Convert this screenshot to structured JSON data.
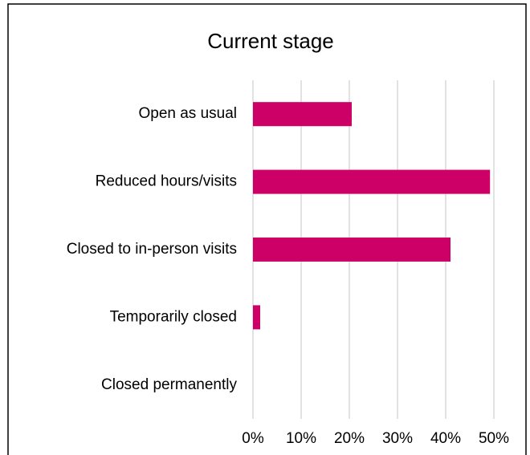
{
  "chart_data": {
    "type": "hbar",
    "title": "Current stage",
    "categories": [
      "Open as usual",
      "Reduced hours/visits",
      "Closed to in-person visits",
      "Temporarily closed",
      "Closed permanently"
    ],
    "values": [
      20.5,
      49.2,
      41,
      1.5,
      0
    ],
    "color": "#cc0066",
    "xlim": [
      0,
      50
    ],
    "xticks": [
      {
        "value": 0,
        "label": "0%"
      },
      {
        "value": 10,
        "label": "10%"
      },
      {
        "value": 20,
        "label": "20%"
      },
      {
        "value": 30,
        "label": "30%"
      },
      {
        "value": 40,
        "label": "40%"
      },
      {
        "value": 50,
        "label": "50%"
      }
    ],
    "grid": true
  }
}
